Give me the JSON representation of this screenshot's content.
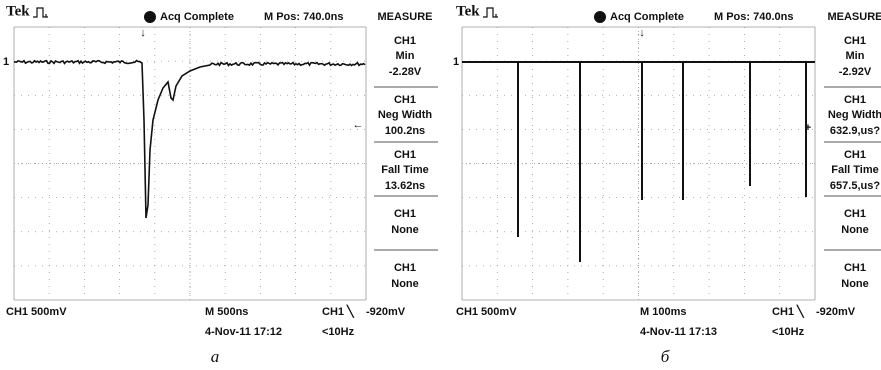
{
  "panels": [
    {
      "header": {
        "brand": "Tek",
        "status": "Acq Complete",
        "position": "M Pos: 740.0ns"
      },
      "channel_marker": "1",
      "measure": {
        "title": "MEASURE",
        "items": [
          {
            "channel": "CH1",
            "label": "Min",
            "value": "-2.28V"
          },
          {
            "channel": "CH1",
            "label": "Neg Width",
            "value": "100.2ns"
          },
          {
            "channel": "CH1",
            "label": "Fall Time",
            "value": "13.62ns"
          },
          {
            "channel": "CH1",
            "label": "None"
          },
          {
            "channel": "CH1",
            "label": "None"
          }
        ]
      },
      "footer": {
        "channel_scale": "CH1  500mV",
        "timebase": "M 500ns",
        "trigger": "CH1 ╲",
        "trigger_level": "-920mV",
        "date": "4-Nov-11 17:12",
        "frequency": "<10Hz"
      },
      "caption": "а"
    },
    {
      "header": {
        "brand": "Tek",
        "status": "Acq Complete",
        "position": "M Pos: 740.0ns"
      },
      "channel_marker": "1",
      "measure": {
        "title": "MEASURE",
        "items": [
          {
            "channel": "CH1",
            "label": "Min",
            "value": "-2.92V"
          },
          {
            "channel": "CH1",
            "label": "Neg Width",
            "value": "632.9,us?"
          },
          {
            "channel": "CH1",
            "label": "Fall Time",
            "value": "657.5,us?"
          },
          {
            "channel": "CH1",
            "label": "None"
          },
          {
            "channel": "CH1",
            "label": "None"
          }
        ]
      },
      "footer": {
        "channel_scale": "CH1  500mV",
        "timebase": "M 100ms",
        "trigger": "CH1 ╲",
        "trigger_level": "-920mV",
        "date": "4-Nov-11 17:13",
        "frequency": "<10Hz"
      },
      "caption": "б"
    }
  ]
}
